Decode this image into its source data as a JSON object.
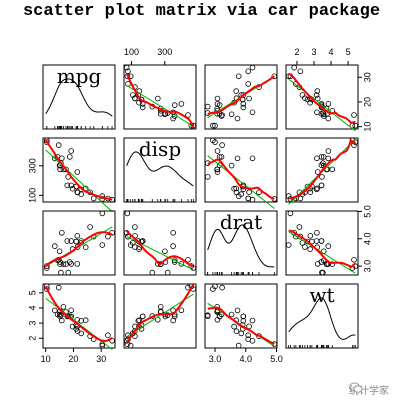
{
  "title": "scatter plot matrix via car package",
  "watermark": "统计学家",
  "chart_data": {
    "type": "scatter",
    "variables": [
      "mpg",
      "disp",
      "drat",
      "wt"
    ],
    "ranges": {
      "mpg": [
        10,
        34
      ],
      "disp": [
        71,
        472
      ],
      "drat": [
        2.76,
        4.93
      ],
      "wt": [
        1.513,
        5.424
      ]
    },
    "ticks": {
      "mpg": [
        10,
        20,
        30
      ],
      "disp": [
        100,
        300
      ],
      "drat": [
        3.0,
        4.0,
        5.0
      ],
      "wt": [
        2,
        3,
        4,
        5
      ]
    },
    "tick_labels": {
      "mpg": [
        "10",
        "20",
        "30"
      ],
      "disp": [
        "100",
        "300"
      ],
      "drat": [
        "3.0",
        "4.0",
        "5.0"
      ],
      "wt": [
        "2",
        "3",
        "4",
        "5"
      ]
    },
    "observations": {
      "mpg": [
        21.0,
        21.0,
        22.8,
        21.4,
        18.7,
        18.1,
        14.3,
        24.4,
        22.8,
        19.2,
        17.8,
        16.4,
        17.3,
        15.2,
        10.4,
        10.4,
        14.7,
        32.4,
        30.4,
        33.9,
        21.5,
        15.5,
        15.2,
        13.3,
        19.2,
        27.3,
        26.0,
        30.4,
        15.8,
        19.7,
        15.0,
        21.4
      ],
      "disp": [
        160,
        160,
        108,
        258,
        360,
        225,
        360,
        146.7,
        140.8,
        167.6,
        167.6,
        275.8,
        275.8,
        275.8,
        472,
        460,
        440,
        78.7,
        75.7,
        71.1,
        120.1,
        318,
        304,
        350,
        400,
        79,
        120.3,
        95.1,
        351,
        145,
        301,
        121
      ],
      "drat": [
        3.9,
        3.9,
        3.85,
        3.08,
        3.15,
        2.76,
        3.21,
        3.69,
        3.92,
        3.92,
        3.92,
        3.07,
        3.07,
        3.07,
        2.93,
        3.0,
        3.23,
        4.08,
        4.93,
        4.22,
        3.7,
        2.76,
        3.15,
        3.73,
        3.08,
        4.08,
        4.43,
        3.77,
        4.22,
        3.62,
        3.54,
        4.11
      ],
      "wt": [
        2.62,
        2.875,
        2.32,
        3.215,
        3.44,
        3.46,
        3.57,
        3.19,
        3.15,
        3.44,
        3.44,
        4.07,
        3.73,
        3.78,
        5.25,
        5.424,
        5.345,
        2.2,
        1.615,
        1.835,
        2.465,
        3.52,
        3.435,
        3.84,
        3.845,
        1.935,
        2.14,
        1.513,
        3.17,
        2.77,
        3.57,
        2.78
      ]
    },
    "series_colors": {
      "points": "#000000",
      "linear_fit": "#00b000",
      "smooth_fit": "#ff0000",
      "density": "#000000"
    }
  }
}
